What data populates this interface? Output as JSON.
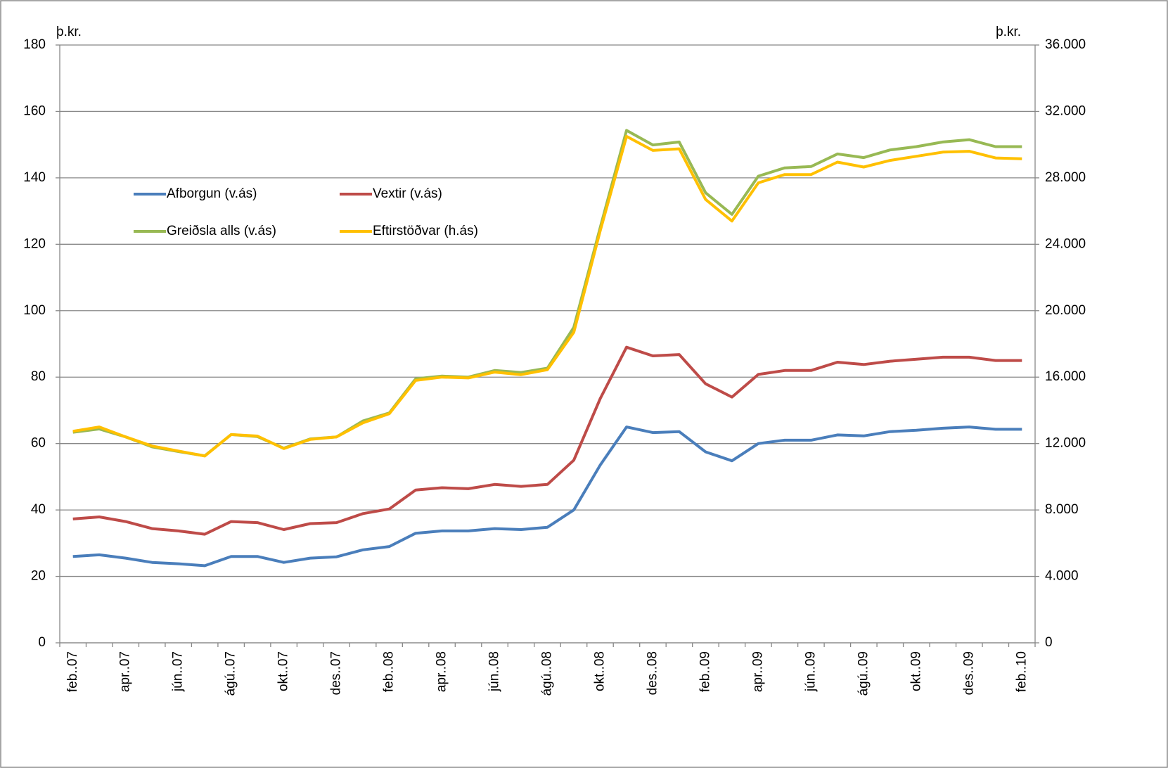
{
  "chart_data": {
    "type": "line",
    "y_unit_label": "þ.kr.",
    "y2_unit_label": "þ.kr.",
    "categories": [
      "feb..07",
      null,
      "apr..07",
      null,
      "jún..07",
      null,
      "ágú..07",
      null,
      "okt..07",
      null,
      "des..07",
      null,
      "feb..08",
      null,
      "apr..08",
      null,
      "jún..08",
      null,
      "ágú..08",
      null,
      "okt..08",
      null,
      "des..08",
      null,
      "feb..09",
      null,
      "apr..09",
      null,
      "jún..09",
      null,
      "ágú..09",
      null,
      "okt..09",
      null,
      "des..09",
      null,
      "feb..10"
    ],
    "ylim": [
      0,
      180
    ],
    "yticks": [
      0,
      20,
      40,
      60,
      80,
      100,
      120,
      140,
      160,
      180
    ],
    "y2lim": [
      0,
      36000
    ],
    "y2ticks": [
      0,
      {
        "value": 4000,
        "label": "4.000"
      },
      {
        "value": 8000,
        "label": "8.000"
      },
      {
        "value": 12000,
        "label": "12.000"
      },
      {
        "value": 16000,
        "label": "16.000"
      },
      {
        "value": 20000,
        "label": "20.000"
      },
      {
        "value": 24000,
        "label": "24.000"
      },
      {
        "value": 28000,
        "label": "28.000"
      },
      {
        "value": 32000,
        "label": "32.000"
      },
      {
        "value": 36000,
        "label": "36.000"
      }
    ],
    "grid": true,
    "series": [
      {
        "name": "Afborgun (v.ás)",
        "color": "#4a7ebb",
        "values": [
          26,
          26.5,
          25.5,
          24.2,
          23.8,
          23.2,
          26,
          26,
          24.2,
          25.5,
          25.9,
          28,
          29,
          33,
          33.7,
          33.7,
          34.4,
          34.1,
          34.8,
          40,
          53.5,
          65,
          63.3,
          63.6,
          57.5,
          54.8,
          60,
          61,
          61,
          62.6,
          62.3,
          63.6,
          64,
          64.6,
          65,
          64.3,
          64.3
        ]
      },
      {
        "name": "Vextir (v.ás)",
        "color": "#be4b48",
        "values": [
          37.3,
          37.9,
          36.5,
          34.4,
          33.7,
          32.7,
          36.5,
          36.2,
          34.1,
          35.9,
          36.2,
          38.9,
          40.3,
          46,
          46.7,
          46.4,
          47.7,
          47.1,
          47.7,
          55,
          73.5,
          89,
          86.4,
          86.8,
          78,
          74,
          80.8,
          82,
          82,
          84.5,
          83.8,
          84.8,
          85.4,
          86,
          86,
          85,
          85
        ]
      },
      {
        "name": "Greiðsla alls (v.ás)",
        "color": "#98b954",
        "values": [
          63.4,
          64.4,
          62,
          59,
          57.6,
          56.3,
          62.7,
          62.1,
          58.6,
          61.4,
          62,
          66.8,
          69.2,
          79.5,
          80.3,
          80,
          82,
          81.4,
          82.7,
          95,
          125,
          154.3,
          149.9,
          150.8,
          135.5,
          129,
          140.5,
          143,
          143.4,
          147.2,
          146.1,
          148.4,
          149.4,
          150.8,
          151.5,
          149.4,
          149.4
        ]
      },
      {
        "name": "Eftirstöðvar (h.ás)",
        "color": "#ffc000",
        "axis": "y2",
        "values": [
          12740,
          13000,
          12400,
          11850,
          11550,
          11250,
          12540,
          12450,
          11700,
          12250,
          12400,
          13250,
          13800,
          15800,
          16000,
          15950,
          16300,
          16150,
          16450,
          18700,
          24800,
          30500,
          29650,
          29750,
          26700,
          25400,
          27700,
          28200,
          28200,
          28950,
          28650,
          29050,
          29300,
          29550,
          29600,
          29200,
          29150
        ]
      }
    ]
  }
}
